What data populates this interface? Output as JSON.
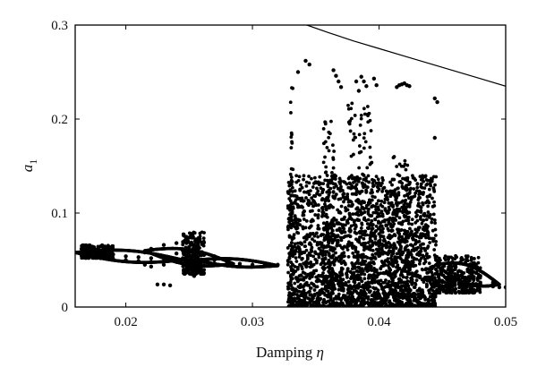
{
  "chart_data": {
    "type": "scatter",
    "title": "",
    "xlabel": "Damping",
    "xlabel_symbol": "η",
    "ylabel": "a",
    "ylabel_subscript": "1",
    "xlim": [
      0.016,
      0.05
    ],
    "ylim": [
      0,
      0.3
    ],
    "grid": false,
    "x_ticks": [
      {
        "value": 0.02,
        "label": "0.02"
      },
      {
        "value": 0.03,
        "label": "0.03"
      },
      {
        "value": 0.04,
        "label": "0.04"
      },
      {
        "value": 0.05,
        "label": "0.05"
      }
    ],
    "y_ticks": [
      {
        "value": 0,
        "label": "0"
      },
      {
        "value": 0.1,
        "label": "0.1"
      },
      {
        "value": 0.2,
        "label": "0.2"
      },
      {
        "value": 0.3,
        "label": "0.3"
      }
    ],
    "series": [
      {
        "type": "line",
        "x": [
          0.0343,
          0.036,
          0.038,
          0.04,
          0.042,
          0.044,
          0.046,
          0.048,
          0.05
        ],
        "y": [
          0.3,
          0.292,
          0.283,
          0.275,
          0.267,
          0.259,
          0.251,
          0.243,
          0.235
        ]
      },
      {
        "type": "scatter",
        "description_of_structure": null,
        "x": [
          0.0165,
          0.017,
          0.0175,
          0.018,
          0.019,
          0.02,
          0.021,
          0.022,
          0.023,
          0.024,
          0.0245,
          0.025,
          0.0255,
          0.026,
          0.027,
          0.028,
          0.029,
          0.03,
          0.031,
          0.032,
          0.0165,
          0.017,
          0.0175,
          0.018,
          0.019,
          0.02,
          0.021,
          0.022,
          0.023,
          0.024,
          0.0245,
          0.025,
          0.0255,
          0.026,
          0.027,
          0.028,
          0.029,
          0.03,
          0.0215,
          0.022,
          0.023,
          0.024,
          0.025,
          0.026,
          0.027,
          0.028,
          0.0215,
          0.022,
          0.023,
          0.024,
          0.025,
          0.026,
          0.027,
          0.028,
          0.0225,
          0.023,
          0.0235,
          0.0249,
          0.0251,
          0.0253,
          0.0255,
          0.0257,
          0.0249,
          0.0251,
          0.0253,
          0.0255,
          0.0257,
          0.0252,
          0.0254,
          0.0445,
          0.046,
          0.047,
          0.048,
          0.049,
          0.05,
          0.0445,
          0.046,
          0.047,
          0.048,
          0.049,
          0.0445,
          0.046,
          0.047,
          0.048,
          0.049,
          0.0495,
          0.0342,
          0.0345,
          0.0336,
          0.0364,
          0.0366,
          0.0368,
          0.037,
          0.0386,
          0.0388,
          0.039,
          0.0396,
          0.0398,
          0.0382,
          0.0384,
          0.0414,
          0.0416,
          0.0418,
          0.042,
          0.0422,
          0.0424,
          0.0444,
          0.0446,
          0.0444
        ],
        "y": [
          0.062,
          0.06,
          0.059,
          0.058,
          0.056,
          0.054,
          0.053,
          0.052,
          0.054,
          0.057,
          0.06,
          0.063,
          0.06,
          0.056,
          0.05,
          0.047,
          0.046,
          0.045,
          0.045,
          0.045,
          0.055,
          0.054,
          0.053,
          0.052,
          0.051,
          0.05,
          0.049,
          0.048,
          0.049,
          0.05,
          0.052,
          0.055,
          0.052,
          0.049,
          0.046,
          0.045,
          0.044,
          0.044,
          0.058,
          0.062,
          0.066,
          0.068,
          0.064,
          0.058,
          0.054,
          0.05,
          0.045,
          0.043,
          0.045,
          0.048,
          0.05,
          0.048,
          0.046,
          0.044,
          0.024,
          0.024,
          0.023,
          0.07,
          0.075,
          0.078,
          0.072,
          0.066,
          0.042,
          0.04,
          0.038,
          0.036,
          0.044,
          0.035,
          0.033,
          0.05,
          0.046,
          0.04,
          0.033,
          0.026,
          0.021,
          0.04,
          0.035,
          0.03,
          0.026,
          0.022,
          0.028,
          0.027,
          0.026,
          0.024,
          0.022,
          0.021,
          0.262,
          0.258,
          0.25,
          0.252,
          0.246,
          0.24,
          0.234,
          0.245,
          0.24,
          0.235,
          0.243,
          0.236,
          0.24,
          0.23,
          0.234,
          0.236,
          0.237,
          0.238,
          0.236,
          0.235,
          0.222,
          0.218,
          0.18
        ]
      }
    ]
  }
}
